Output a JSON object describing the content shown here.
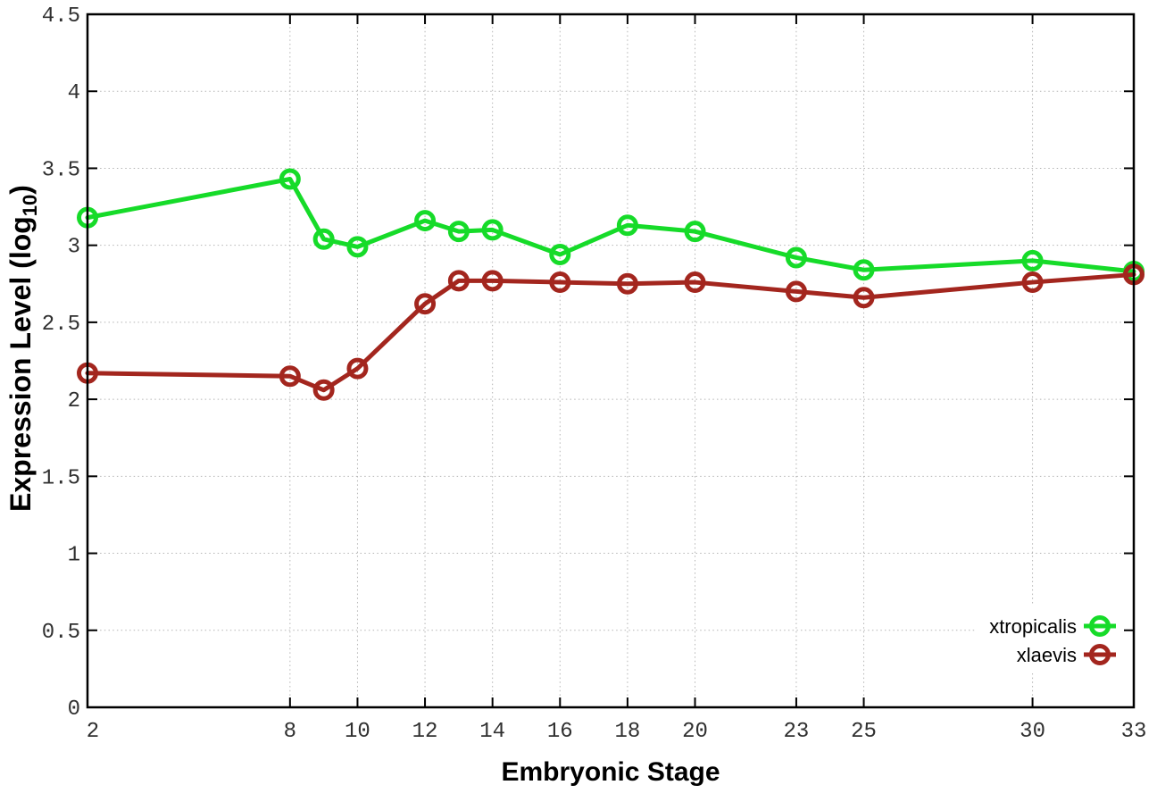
{
  "chart_data": {
    "type": "line",
    "title": "",
    "xlabel": "Embryonic Stage",
    "ylabel": "Expression Level (log10)",
    "ylabel_parts": {
      "prefix": "Expression Level (log",
      "subscript": "10",
      "suffix": ")"
    },
    "xlim": [
      2,
      33
    ],
    "ylim": [
      0,
      4.5
    ],
    "grid": true,
    "legend_position": "inside-bottom-right",
    "marker": "open-circle",
    "x": [
      2,
      8,
      9,
      10,
      12,
      13,
      14,
      16,
      18,
      20,
      23,
      25,
      30,
      33
    ],
    "xticks": [
      2,
      8,
      10,
      12,
      14,
      16,
      18,
      20,
      23,
      25,
      30,
      33
    ],
    "xtick_labels": [
      "2",
      "8",
      "10",
      "12",
      "14",
      "16",
      "18",
      "20",
      "23",
      "25",
      "30",
      "33"
    ],
    "yticks": [
      0,
      0.5,
      1,
      1.5,
      2,
      2.5,
      3,
      3.5,
      4,
      4.5
    ],
    "ytick_labels": [
      "0",
      "0.5",
      "1",
      "1.5",
      "2",
      "2.5",
      "3",
      "3.5",
      "4",
      "4.5"
    ],
    "series": [
      {
        "name": "xtropicalis",
        "color": "#16DB29",
        "values": [
          3.18,
          3.43,
          3.04,
          2.99,
          3.16,
          3.09,
          3.1,
          2.94,
          3.13,
          3.09,
          2.92,
          2.84,
          2.9,
          2.83
        ]
      },
      {
        "name": "xlaevis",
        "color": "#A3261E",
        "values": [
          2.17,
          2.15,
          2.06,
          2.2,
          2.62,
          2.77,
          2.77,
          2.76,
          2.75,
          2.76,
          2.7,
          2.66,
          2.76,
          2.81
        ]
      }
    ],
    "colors": {
      "grid": "#b4b4b4",
      "axis": "#000000",
      "tick_label": "#303030",
      "background": "#ffffff"
    }
  }
}
